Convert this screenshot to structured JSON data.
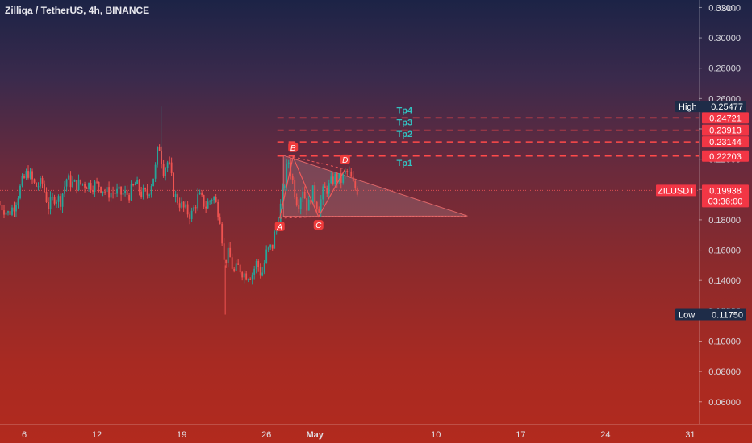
{
  "header": {
    "symbol": "Zilliqa / TetherUS",
    "timeframe": "4h",
    "exchange": "BINANCE",
    "separator": ", "
  },
  "currency": "USDT",
  "colors": {
    "up": "#26a69a",
    "down": "#ef5350",
    "marker": "#ef3b3b",
    "pattern": "#f05a5a",
    "tp_text": "#33c1c1",
    "low_label": "#1e2c48"
  },
  "chart_data": {
    "type": "candlestick",
    "y_axis": {
      "ticks": [
        "0.06000",
        "0.08000",
        "0.10000",
        "0.12000",
        "0.14000",
        "0.16000",
        "0.18000",
        "0.20000",
        "0.22000",
        "0.24000",
        "0.26000",
        "0.28000",
        "0.30000",
        "0.32000"
      ],
      "range": [
        0.045,
        0.325
      ]
    },
    "x_axis": {
      "ticks": [
        {
          "label": "6",
          "day": 6
        },
        {
          "label": "12",
          "day": 12
        },
        {
          "label": "19",
          "day": 19
        },
        {
          "label": "26",
          "day": 26
        },
        {
          "label": "May",
          "day": 30
        },
        {
          "label": "10",
          "day": 40
        },
        {
          "label": "17",
          "day": 47
        },
        {
          "label": "24",
          "day": 54
        },
        {
          "label": "31",
          "day": 61
        }
      ],
      "range_days": [
        4.0,
        61.7
      ]
    },
    "price_labels": {
      "high": {
        "label": "High",
        "value": "0.25477"
      },
      "low": {
        "label": "Low",
        "value": "0.11750"
      },
      "current": {
        "symbol": "ZILUSDT",
        "value": "0.19938",
        "countdown": "03:36:00"
      }
    },
    "targets": [
      {
        "name": "Tp1",
        "value": 0.22203,
        "label": "0.22203"
      },
      {
        "name": "Tp2",
        "value": 0.23144,
        "label": "0.23144"
      },
      {
        "name": "Tp3",
        "value": 0.23913,
        "label": "0.23913"
      },
      {
        "name": "Tp4",
        "value": 0.24721,
        "label": "0.24721"
      }
    ],
    "pattern_points": [
      {
        "name": "A",
        "day": 27.1,
        "price": 0.181
      },
      {
        "name": "B",
        "day": 28.2,
        "price": 0.2215
      },
      {
        "name": "C",
        "day": 30.3,
        "price": 0.182
      },
      {
        "name": "D",
        "day": 32.5,
        "price": 0.2135
      }
    ],
    "triangle": {
      "upper": [
        {
          "day": 27.4,
          "price": 0.2225
        },
        {
          "day": 42.6,
          "price": 0.1825
        }
      ],
      "lower": [
        {
          "day": 27.4,
          "price": 0.1822
        },
        {
          "day": 42.6,
          "price": 0.1822
        }
      ]
    },
    "candle_path": [
      [
        4.0,
        0.19
      ],
      [
        4.7,
        0.184
      ],
      [
        5.2,
        0.19
      ],
      [
        5.8,
        0.204
      ],
      [
        6.3,
        0.212
      ],
      [
        6.9,
        0.202
      ],
      [
        7.5,
        0.204
      ],
      [
        8.0,
        0.189
      ],
      [
        8.5,
        0.195
      ],
      [
        9.0,
        0.193
      ],
      [
        9.5,
        0.207
      ],
      [
        10.1,
        0.203
      ],
      [
        10.8,
        0.204
      ],
      [
        11.5,
        0.203
      ],
      [
        12.2,
        0.203
      ],
      [
        12.8,
        0.198
      ],
      [
        13.5,
        0.198
      ],
      [
        14.1,
        0.197
      ],
      [
        14.7,
        0.197
      ],
      [
        15.2,
        0.204
      ],
      [
        15.7,
        0.197
      ],
      [
        16.2,
        0.197
      ],
      [
        16.8,
        0.212
      ],
      [
        17.1,
        0.231
      ],
      [
        17.5,
        0.213
      ],
      [
        17.9,
        0.219
      ],
      [
        18.4,
        0.196
      ],
      [
        19.2,
        0.187
      ],
      [
        19.8,
        0.183
      ],
      [
        20.4,
        0.196
      ],
      [
        21.0,
        0.189
      ],
      [
        21.6,
        0.196
      ],
      [
        22.2,
        0.181
      ],
      [
        22.5,
        0.152
      ],
      [
        22.9,
        0.158
      ],
      [
        23.3,
        0.145
      ],
      [
        23.7,
        0.149
      ],
      [
        24.2,
        0.144
      ],
      [
        24.8,
        0.144
      ],
      [
        25.2,
        0.152
      ],
      [
        25.6,
        0.143
      ],
      [
        26.0,
        0.158
      ],
      [
        26.5,
        0.163
      ],
      [
        26.8,
        0.176
      ],
      [
        27.2,
        0.19
      ],
      [
        27.8,
        0.22
      ],
      [
        28.3,
        0.2
      ],
      [
        28.6,
        0.19
      ],
      [
        29.0,
        0.201
      ],
      [
        29.4,
        0.187
      ],
      [
        29.8,
        0.199
      ],
      [
        30.3,
        0.187
      ],
      [
        30.7,
        0.199
      ],
      [
        31.1,
        0.201
      ],
      [
        31.6,
        0.208
      ],
      [
        32.2,
        0.206
      ],
      [
        32.6,
        0.212
      ],
      [
        32.9,
        0.209
      ],
      [
        33.2,
        0.202
      ],
      [
        33.6,
        0.199
      ]
    ]
  }
}
